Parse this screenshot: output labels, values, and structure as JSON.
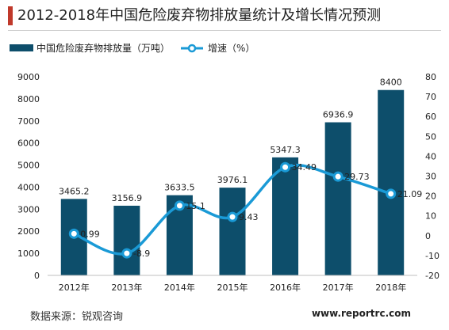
{
  "title": "2012-2018年中国危险废弃物排放量统计及增长情况预测",
  "footer": {
    "source": "数据来源：锐观咨询",
    "website": "www.reportrc.com"
  },
  "colors": {
    "bar": "#0d4e6b",
    "line": "#1a9ad6",
    "marker_fill": "#ffffff",
    "accent": "#c0392b"
  },
  "chart_data": {
    "type": "bar+line",
    "categories": [
      "2012年",
      "2013年",
      "2014年",
      "2015年",
      "2016年",
      "2017年",
      "2018年"
    ],
    "series": [
      {
        "name": "中国危险废弃物排放量（万吨）",
        "type": "bar",
        "axis": "left",
        "values": [
          3465.2,
          3156.9,
          3633.5,
          3976.1,
          5347.3,
          6936.9,
          8400
        ],
        "labels": [
          "3465.2",
          "3156.9",
          "3633.5",
          "3976.1",
          "5347.3",
          "6936.9",
          "8400"
        ]
      },
      {
        "name": "增速（%）",
        "type": "line",
        "axis": "right",
        "values": [
          0.99,
          -8.9,
          15.1,
          9.43,
          34.49,
          29.73,
          21.09
        ],
        "labels": [
          "0.99",
          "-8.9",
          "15.1",
          "9.43",
          "34.49",
          "29.73",
          "21.09"
        ]
      }
    ],
    "y_left": {
      "min": 0,
      "max": 9000,
      "ticks": [
        "0",
        "1000",
        "2000",
        "3000",
        "4000",
        "5000",
        "6000",
        "7000",
        "8000",
        "9000"
      ]
    },
    "y_right": {
      "min": -20,
      "max": 80,
      "ticks": [
        "-20",
        "-10",
        "0",
        "10",
        "20",
        "30",
        "40",
        "50",
        "60",
        "70",
        "80"
      ]
    },
    "legend": "top-left",
    "grid": false
  }
}
